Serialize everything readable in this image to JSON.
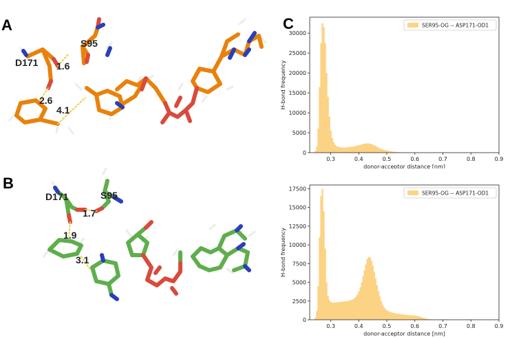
{
  "panels": {
    "A": {
      "letter": "A",
      "residue_labels": {
        "d171": "D171",
        "s95": "S95"
      },
      "distances": [
        "1.6",
        "2.6",
        "4.1"
      ],
      "colors": {
        "carbon": "#e8820c",
        "oxygen": "#d94a3c",
        "nitrogen": "#2a3fb8",
        "hydrogen": "#e0e0e0"
      }
    },
    "B": {
      "letter": "B",
      "residue_labels": {
        "d171": "D171",
        "s95": "S95"
      },
      "distances": [
        "1.7",
        "1.9",
        "3.1"
      ],
      "colors": {
        "carbon": "#5fae4c",
        "oxygen": "#d94a3c",
        "nitrogen": "#2a3fb8",
        "hydrogen": "#e0e0e0"
      }
    },
    "C": {
      "letter": "C"
    }
  },
  "chart_data": [
    {
      "type": "bar",
      "legend": "SER95-OG -- ASP171-OD1",
      "legend_position": "top-right",
      "xlabel": "donor-acceptor distance [nm]",
      "ylabel": "H-bond frequency",
      "xlim": [
        0.225,
        0.9
      ],
      "ylim": [
        0,
        34000
      ],
      "xticks": [
        "0.3",
        "0.4",
        "0.5",
        "0.6",
        "0.7",
        "0.8",
        "0.9"
      ],
      "xtick_values": [
        0.3,
        0.4,
        0.5,
        0.6,
        0.7,
        0.8,
        0.9
      ],
      "yticks": [
        "0",
        "5000",
        "10000",
        "15000",
        "20000",
        "25000",
        "30000"
      ],
      "ytick_values": [
        0,
        5000,
        10000,
        15000,
        20000,
        25000,
        30000
      ],
      "color": "#fbc96a",
      "bin_width": 0.005,
      "x": [
        0.245,
        0.25,
        0.255,
        0.26,
        0.265,
        0.27,
        0.275,
        0.28,
        0.285,
        0.29,
        0.295,
        0.3,
        0.305,
        0.31,
        0.315,
        0.32,
        0.325,
        0.33,
        0.335,
        0.34,
        0.345,
        0.35,
        0.355,
        0.36,
        0.365,
        0.37,
        0.375,
        0.38,
        0.385,
        0.39,
        0.395,
        0.4,
        0.405,
        0.41,
        0.415,
        0.42,
        0.425,
        0.43,
        0.435,
        0.44,
        0.445,
        0.45,
        0.455,
        0.46,
        0.465,
        0.47,
        0.475,
        0.48,
        0.485,
        0.49,
        0.495,
        0.5,
        0.505,
        0.51,
        0.515,
        0.52,
        0.525,
        0.53,
        0.535,
        0.54,
        0.545,
        0.55,
        0.555,
        0.56,
        0.565,
        0.57,
        0.575,
        0.58,
        0.585,
        0.59,
        0.595,
        0.6,
        0.605,
        0.61,
        0.615,
        0.62,
        0.625,
        0.63,
        0.635,
        0.64,
        0.645,
        0.65
      ],
      "values": [
        400,
        1500,
        6000,
        16500,
        27500,
        32500,
        31500,
        27500,
        20000,
        14000,
        9000,
        5500,
        3700,
        2700,
        2000,
        1700,
        1500,
        1400,
        1350,
        1300,
        1300,
        1300,
        1300,
        1350,
        1400,
        1450,
        1500,
        1550,
        1600,
        1700,
        1750,
        1850,
        1950,
        2050,
        2150,
        2250,
        2300,
        2350,
        2300,
        2250,
        2150,
        2000,
        1850,
        1650,
        1450,
        1250,
        1100,
        950,
        820,
        700,
        600,
        520,
        450,
        380,
        320,
        270,
        230,
        190,
        160,
        130,
        110,
        90,
        70,
        55,
        45,
        35,
        25,
        20,
        15,
        10,
        8,
        6,
        5,
        4,
        3,
        2,
        2,
        1,
        1,
        0,
        0,
        0
      ]
    },
    {
      "type": "bar",
      "legend": "SER95-OG -- ASP171-OD1",
      "legend_position": "top-right",
      "xlabel": "donor-acceptor distance [nm]",
      "ylabel": "H-bond frequency",
      "xlim": [
        0.225,
        0.9
      ],
      "ylim": [
        0,
        18000
      ],
      "xticks": [
        "0.3",
        "0.4",
        "0.5",
        "0.6",
        "0.7",
        "0.8",
        "0.9"
      ],
      "xtick_values": [
        0.3,
        0.4,
        0.5,
        0.6,
        0.7,
        0.8,
        0.9
      ],
      "yticks": [
        "0",
        "2500",
        "5000",
        "7500",
        "10000",
        "12500",
        "15000",
        "17500"
      ],
      "ytick_values": [
        0,
        2500,
        5000,
        7500,
        10000,
        12500,
        15000,
        17500
      ],
      "color": "#fbc96a",
      "bin_width": 0.005,
      "x": [
        0.245,
        0.25,
        0.255,
        0.26,
        0.265,
        0.27,
        0.275,
        0.28,
        0.285,
        0.29,
        0.295,
        0.3,
        0.305,
        0.31,
        0.315,
        0.32,
        0.325,
        0.33,
        0.335,
        0.34,
        0.345,
        0.35,
        0.355,
        0.36,
        0.365,
        0.37,
        0.375,
        0.38,
        0.385,
        0.39,
        0.395,
        0.4,
        0.405,
        0.41,
        0.415,
        0.42,
        0.425,
        0.43,
        0.435,
        0.44,
        0.445,
        0.45,
        0.455,
        0.46,
        0.465,
        0.47,
        0.475,
        0.48,
        0.485,
        0.49,
        0.495,
        0.5,
        0.505,
        0.51,
        0.515,
        0.52,
        0.525,
        0.53,
        0.535,
        0.54,
        0.545,
        0.55,
        0.555,
        0.56,
        0.565,
        0.57,
        0.575,
        0.58,
        0.585,
        0.59,
        0.595,
        0.6,
        0.605,
        0.61,
        0.615,
        0.62,
        0.625,
        0.63,
        0.635,
        0.64,
        0.645,
        0.65,
        0.655,
        0.66,
        0.665,
        0.67,
        0.675,
        0.68,
        0.685,
        0.69,
        0.695,
        0.7,
        0.705,
        0.71,
        0.715,
        0.72,
        0.725,
        0.73,
        0.735,
        0.74,
        0.745,
        0.75
      ],
      "values": [
        300,
        1200,
        4500,
        11000,
        16500,
        17500,
        14500,
        9500,
        5000,
        3200,
        2600,
        2400,
        2300,
        2300,
        2300,
        2300,
        2350,
        2350,
        2400,
        2400,
        2450,
        2450,
        2500,
        2500,
        2550,
        2600,
        2650,
        2750,
        2900,
        3100,
        3400,
        3800,
        4300,
        5000,
        5800,
        6600,
        7400,
        8100,
        8400,
        8300,
        7900,
        7200,
        6400,
        5500,
        4600,
        3800,
        3100,
        2500,
        2000,
        1650,
        1400,
        1250,
        1150,
        1050,
        1000,
        950,
        900,
        850,
        820,
        800,
        780,
        750,
        720,
        700,
        680,
        650,
        630,
        610,
        600,
        590,
        580,
        560,
        530,
        490,
        440,
        380,
        320,
        260,
        200,
        150,
        110,
        80,
        60,
        45,
        30,
        20,
        15,
        10,
        8,
        6,
        4,
        3,
        2,
        2,
        1,
        1,
        0,
        0,
        0,
        0,
        0,
        0
      ]
    }
  ]
}
